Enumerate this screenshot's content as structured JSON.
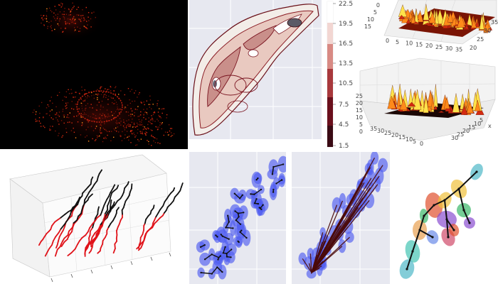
{
  "colors": {
    "hot_dark": "#000000",
    "hot_red": "#d42a10",
    "hot_orange": "#ff8a1a",
    "hot_yellow": "#ffe24a",
    "contour_dark": "#5b0a12",
    "plot_bg": "#e7e8f0",
    "blob_blue": "#4f5cf0",
    "edge_dark": "#4a0a0a",
    "track_red": "#e0131a",
    "track_black": "#111111"
  },
  "contour_panel": {
    "colorbar_ticks": [
      "22.5",
      "19.5",
      "16.5",
      "13.5",
      "10.5",
      "7.5",
      "4.5",
      "1.5"
    ]
  },
  "surface_top": {
    "axis_ticks": [
      "0",
      "5",
      "10",
      "15",
      "20",
      "25",
      "30",
      "35"
    ],
    "right_ticks": [
      "20",
      "25",
      "30",
      "35"
    ]
  },
  "surface_bottom": {
    "z_ticks": [
      "25",
      "20",
      "15",
      "10",
      "5",
      "0"
    ],
    "front_ticks": [
      "35",
      "30",
      "25",
      "20",
      "15",
      "10",
      "5",
      "0"
    ],
    "side_ticks": [
      "5",
      "10",
      "15",
      "20",
      "25",
      "30"
    ],
    "side_label": "x"
  }
}
